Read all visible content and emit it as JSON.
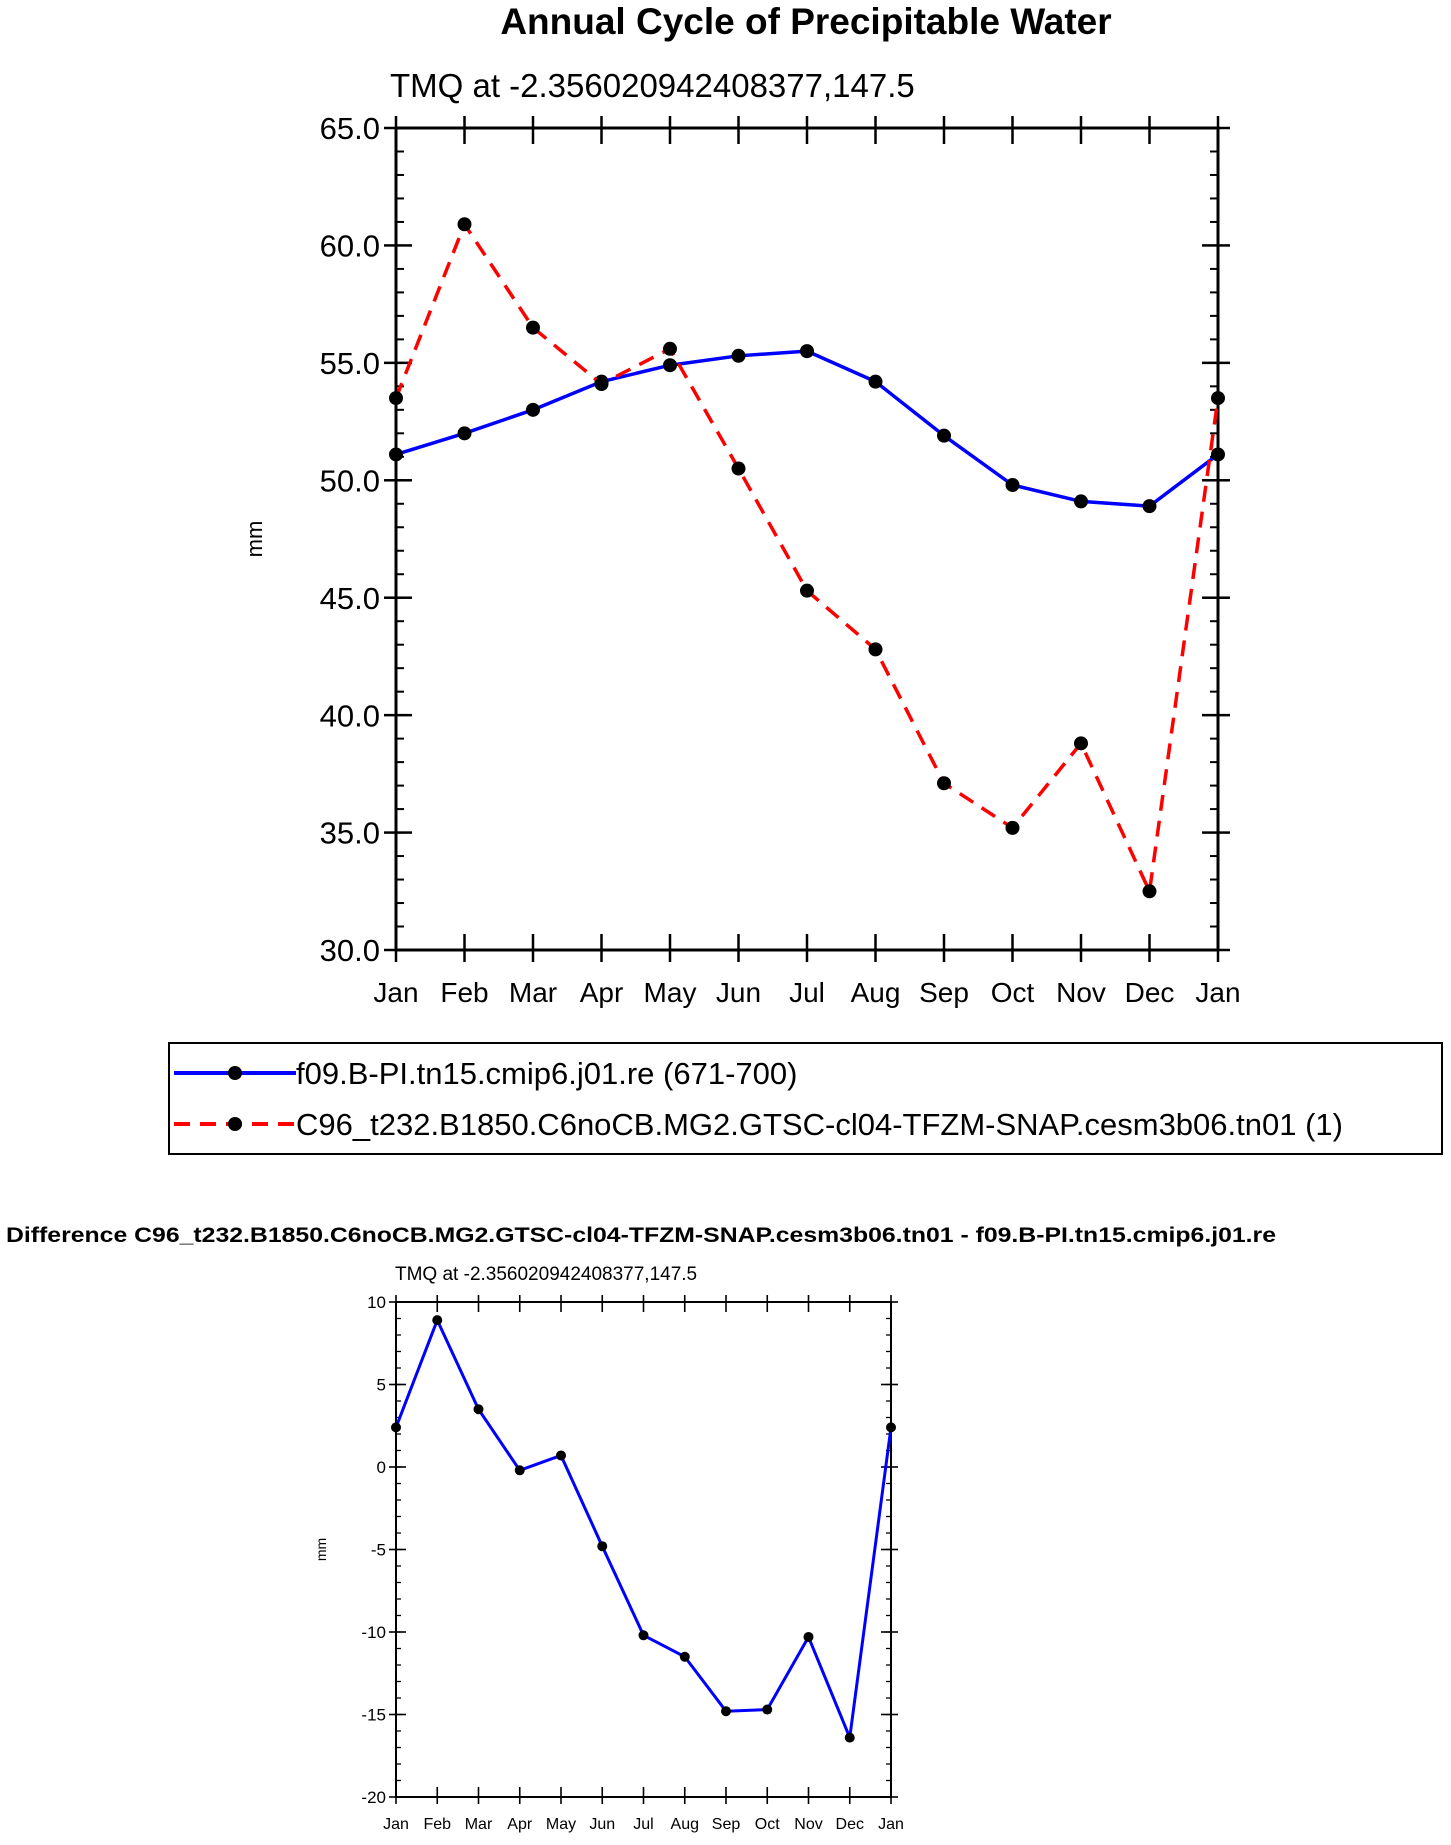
{
  "top_chart": {
    "title": "Annual Cycle of Precipitable Water",
    "subtitle": "TMQ at -2.356020942408377,147.5"
  },
  "bottom_chart": {
    "title": "Difference C96_t232.B1850.C6noCB.MG2.GTSC-cl04-TFZM-SNAP.cesm3b06.tn01 - f09.B-PI.tn15.cmip6.j01.re",
    "subtitle": "TMQ at -2.356020942408377,147.5"
  },
  "legend": {
    "entries": [
      "f09.B-PI.tn15.cmip6.j01.re (671-700)",
      "C96_t232.B1850.C6noCB.MG2.GTSC-cl04-TFZM-SNAP.cesm3b06.tn01 (1)"
    ]
  },
  "colors": {
    "series_blue": "#0000ff",
    "series_red": "#ff0000",
    "marker": "#000000"
  },
  "chart_data": [
    {
      "type": "line",
      "title": "Annual Cycle of Precipitable Water",
      "subtitle": "TMQ at -2.356020942408377,147.5",
      "xlabel": "",
      "ylabel": "mm",
      "categories": [
        "Jan",
        "Feb",
        "Mar",
        "Apr",
        "May",
        "Jun",
        "Jul",
        "Aug",
        "Sep",
        "Oct",
        "Nov",
        "Dec",
        "Jan"
      ],
      "ylim": [
        30,
        65
      ],
      "yticks": [
        "30.0",
        "35.0",
        "40.0",
        "45.0",
        "50.0",
        "55.0",
        "60.0",
        "65.0"
      ],
      "ytick_values": [
        30,
        35,
        40,
        45,
        50,
        55,
        60,
        65
      ],
      "series": [
        {
          "name": "f09.B-PI.tn15.cmip6.j01.re (671-700)",
          "color": "#0000ff",
          "dash": "solid",
          "values": [
            51.1,
            52.0,
            53.0,
            54.2,
            54.9,
            55.3,
            55.5,
            54.2,
            51.9,
            49.8,
            49.1,
            48.9,
            51.1
          ]
        },
        {
          "name": "C96_t232.B1850.C6noCB.MG2.GTSC-cl04-TFZM-SNAP.cesm3b06.tn01 (1)",
          "color": "#ff0000",
          "dash": "dashed",
          "values": [
            53.5,
            60.9,
            56.5,
            54.1,
            55.6,
            50.5,
            45.3,
            42.8,
            37.1,
            35.2,
            38.8,
            32.5,
            53.5
          ]
        }
      ],
      "legend": "bottom",
      "grid": false
    },
    {
      "type": "line",
      "title": "Difference C96_t232.B1850.C6noCB.MG2.GTSC-cl04-TFZM-SNAP.cesm3b06.tn01 - f09.B-PI.tn15.cmip6.j01.re",
      "subtitle": "TMQ at -2.356020942408377,147.5",
      "xlabel": "",
      "ylabel": "mm",
      "categories": [
        "Jan",
        "Feb",
        "Mar",
        "Apr",
        "May",
        "Jun",
        "Jul",
        "Aug",
        "Sep",
        "Oct",
        "Nov",
        "Dec",
        "Jan"
      ],
      "ylim": [
        -20,
        10
      ],
      "yticks": [
        "-20",
        "-15",
        "-10",
        "-5",
        "0",
        "5",
        "10"
      ],
      "ytick_values": [
        -20,
        -15,
        -10,
        -5,
        0,
        5,
        10
      ],
      "series": [
        {
          "name": "Difference",
          "color": "#0000ff",
          "dash": "solid",
          "values": [
            2.4,
            8.9,
            3.5,
            -0.2,
            0.7,
            -4.8,
            -10.2,
            -11.5,
            -14.8,
            -14.7,
            -10.3,
            -16.4,
            2.4
          ]
        }
      ],
      "grid": false
    }
  ]
}
